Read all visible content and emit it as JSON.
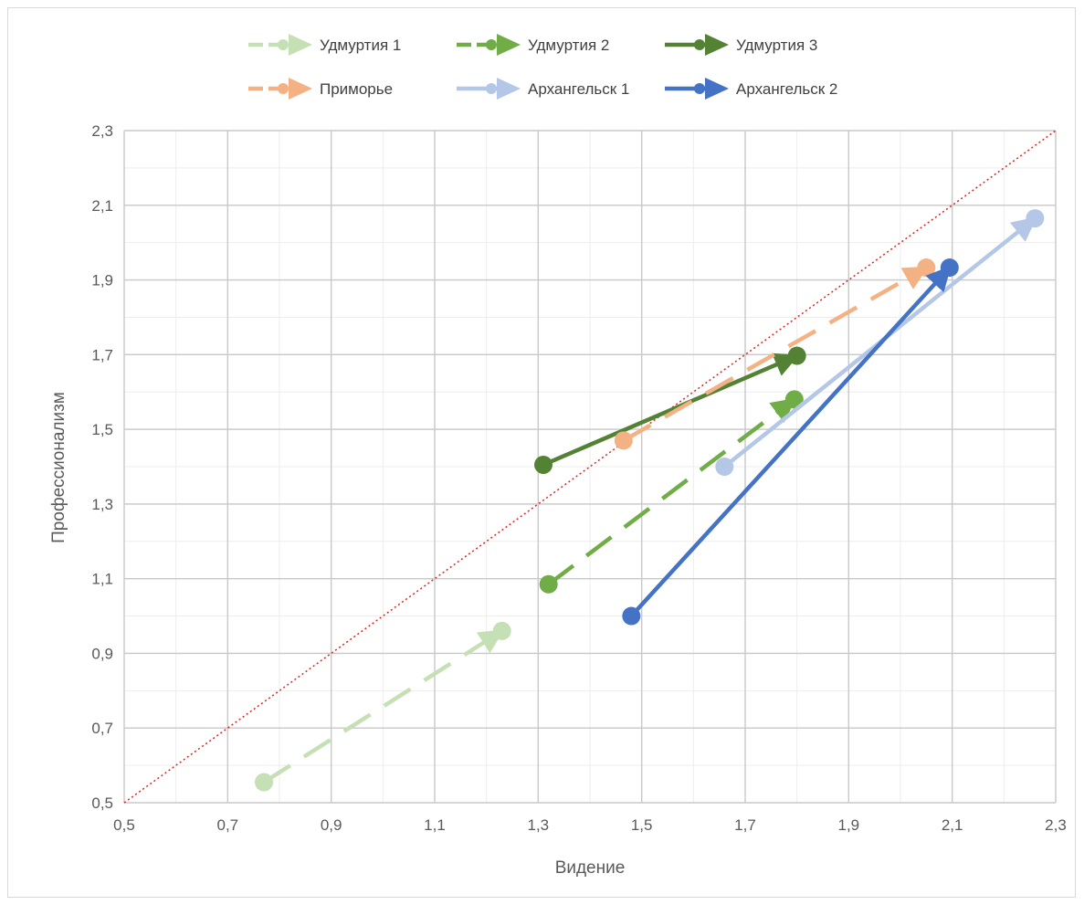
{
  "chart_data": {
    "type": "line",
    "title": "",
    "xlabel": "Видение",
    "ylabel": "Профессионализм",
    "xlim": [
      0.5,
      2.3
    ],
    "ylim": [
      0.5,
      2.3
    ],
    "x_ticks": [
      0.5,
      0.7,
      0.9,
      1.1,
      1.3,
      1.5,
      1.7,
      1.9,
      2.1,
      2.3
    ],
    "y_ticks": [
      0.5,
      0.7,
      0.9,
      1.1,
      1.3,
      1.5,
      1.7,
      1.9,
      2.1,
      2.3
    ],
    "x_tick_labels": [
      "0,5",
      "0,7",
      "0,9",
      "1,1",
      "1,3",
      "1,5",
      "1,7",
      "1,9",
      "2,1",
      "2,3"
    ],
    "y_tick_labels": [
      "0,5",
      "0,7",
      "0,9",
      "1,1",
      "1,3",
      "1,5",
      "1,7",
      "1,9",
      "2,1",
      "2,3"
    ],
    "grid": true,
    "legend_position": "top",
    "reference_line": {
      "from": [
        0.5,
        0.5
      ],
      "to": [
        2.3,
        2.3
      ],
      "color": "#e02020",
      "style": "dotted"
    },
    "series": [
      {
        "name": "Удмуртия 1",
        "color": "#c5e0b4",
        "dash": "dashed",
        "start": [
          0.77,
          0.555
        ],
        "end": [
          1.23,
          0.96
        ]
      },
      {
        "name": "Удмуртия 2",
        "color": "#70ad47",
        "dash": "dashed",
        "start": [
          1.32,
          1.085
        ],
        "end": [
          1.795,
          1.58
        ]
      },
      {
        "name": "Удмуртия 3",
        "color": "#548235",
        "dash": "solid",
        "start": [
          1.31,
          1.405
        ],
        "end": [
          1.8,
          1.697
        ]
      },
      {
        "name": "Приморье",
        "color": "#f4b183",
        "dash": "dashed",
        "start": [
          1.465,
          1.47
        ],
        "end": [
          2.05,
          1.933
        ]
      },
      {
        "name": "Архангельск 1",
        "color": "#b4c7e7",
        "dash": "solid",
        "start": [
          1.66,
          1.4
        ],
        "end": [
          2.26,
          2.065
        ]
      },
      {
        "name": "Архангельск 2",
        "color": "#4472c4",
        "dash": "solid",
        "start": [
          1.48,
          1.0
        ],
        "end": [
          2.095,
          1.933
        ]
      }
    ]
  }
}
